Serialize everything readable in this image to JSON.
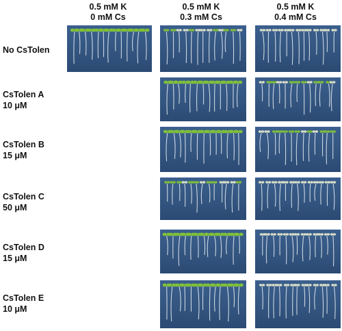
{
  "columns": [
    {
      "line1": "0.5 mM K",
      "line2": "0 mM Cs"
    },
    {
      "line1": "0.5 mM K",
      "line2": "0.3 mM Cs"
    },
    {
      "line1": "0.5 mM K",
      "line2": "0.4 mM Cs"
    }
  ],
  "rows": [
    {
      "name": "No CsTolen",
      "dose": ""
    },
    {
      "name": "CsTolen A",
      "dose": "10 μM"
    },
    {
      "name": "CsTolen B",
      "dose": "15 μM"
    },
    {
      "name": "CsTolen C",
      "dose": "50 μM"
    },
    {
      "name": "CsTolen D",
      "dose": "15 μM"
    },
    {
      "name": "CsTolen E",
      "dose": "10 μM"
    }
  ],
  "colors": {
    "agar_background": "#33557f",
    "root": "#e6ecf2",
    "leaf_green": "#7fbf3a",
    "leaf_pale": "#d9dfc8"
  }
}
